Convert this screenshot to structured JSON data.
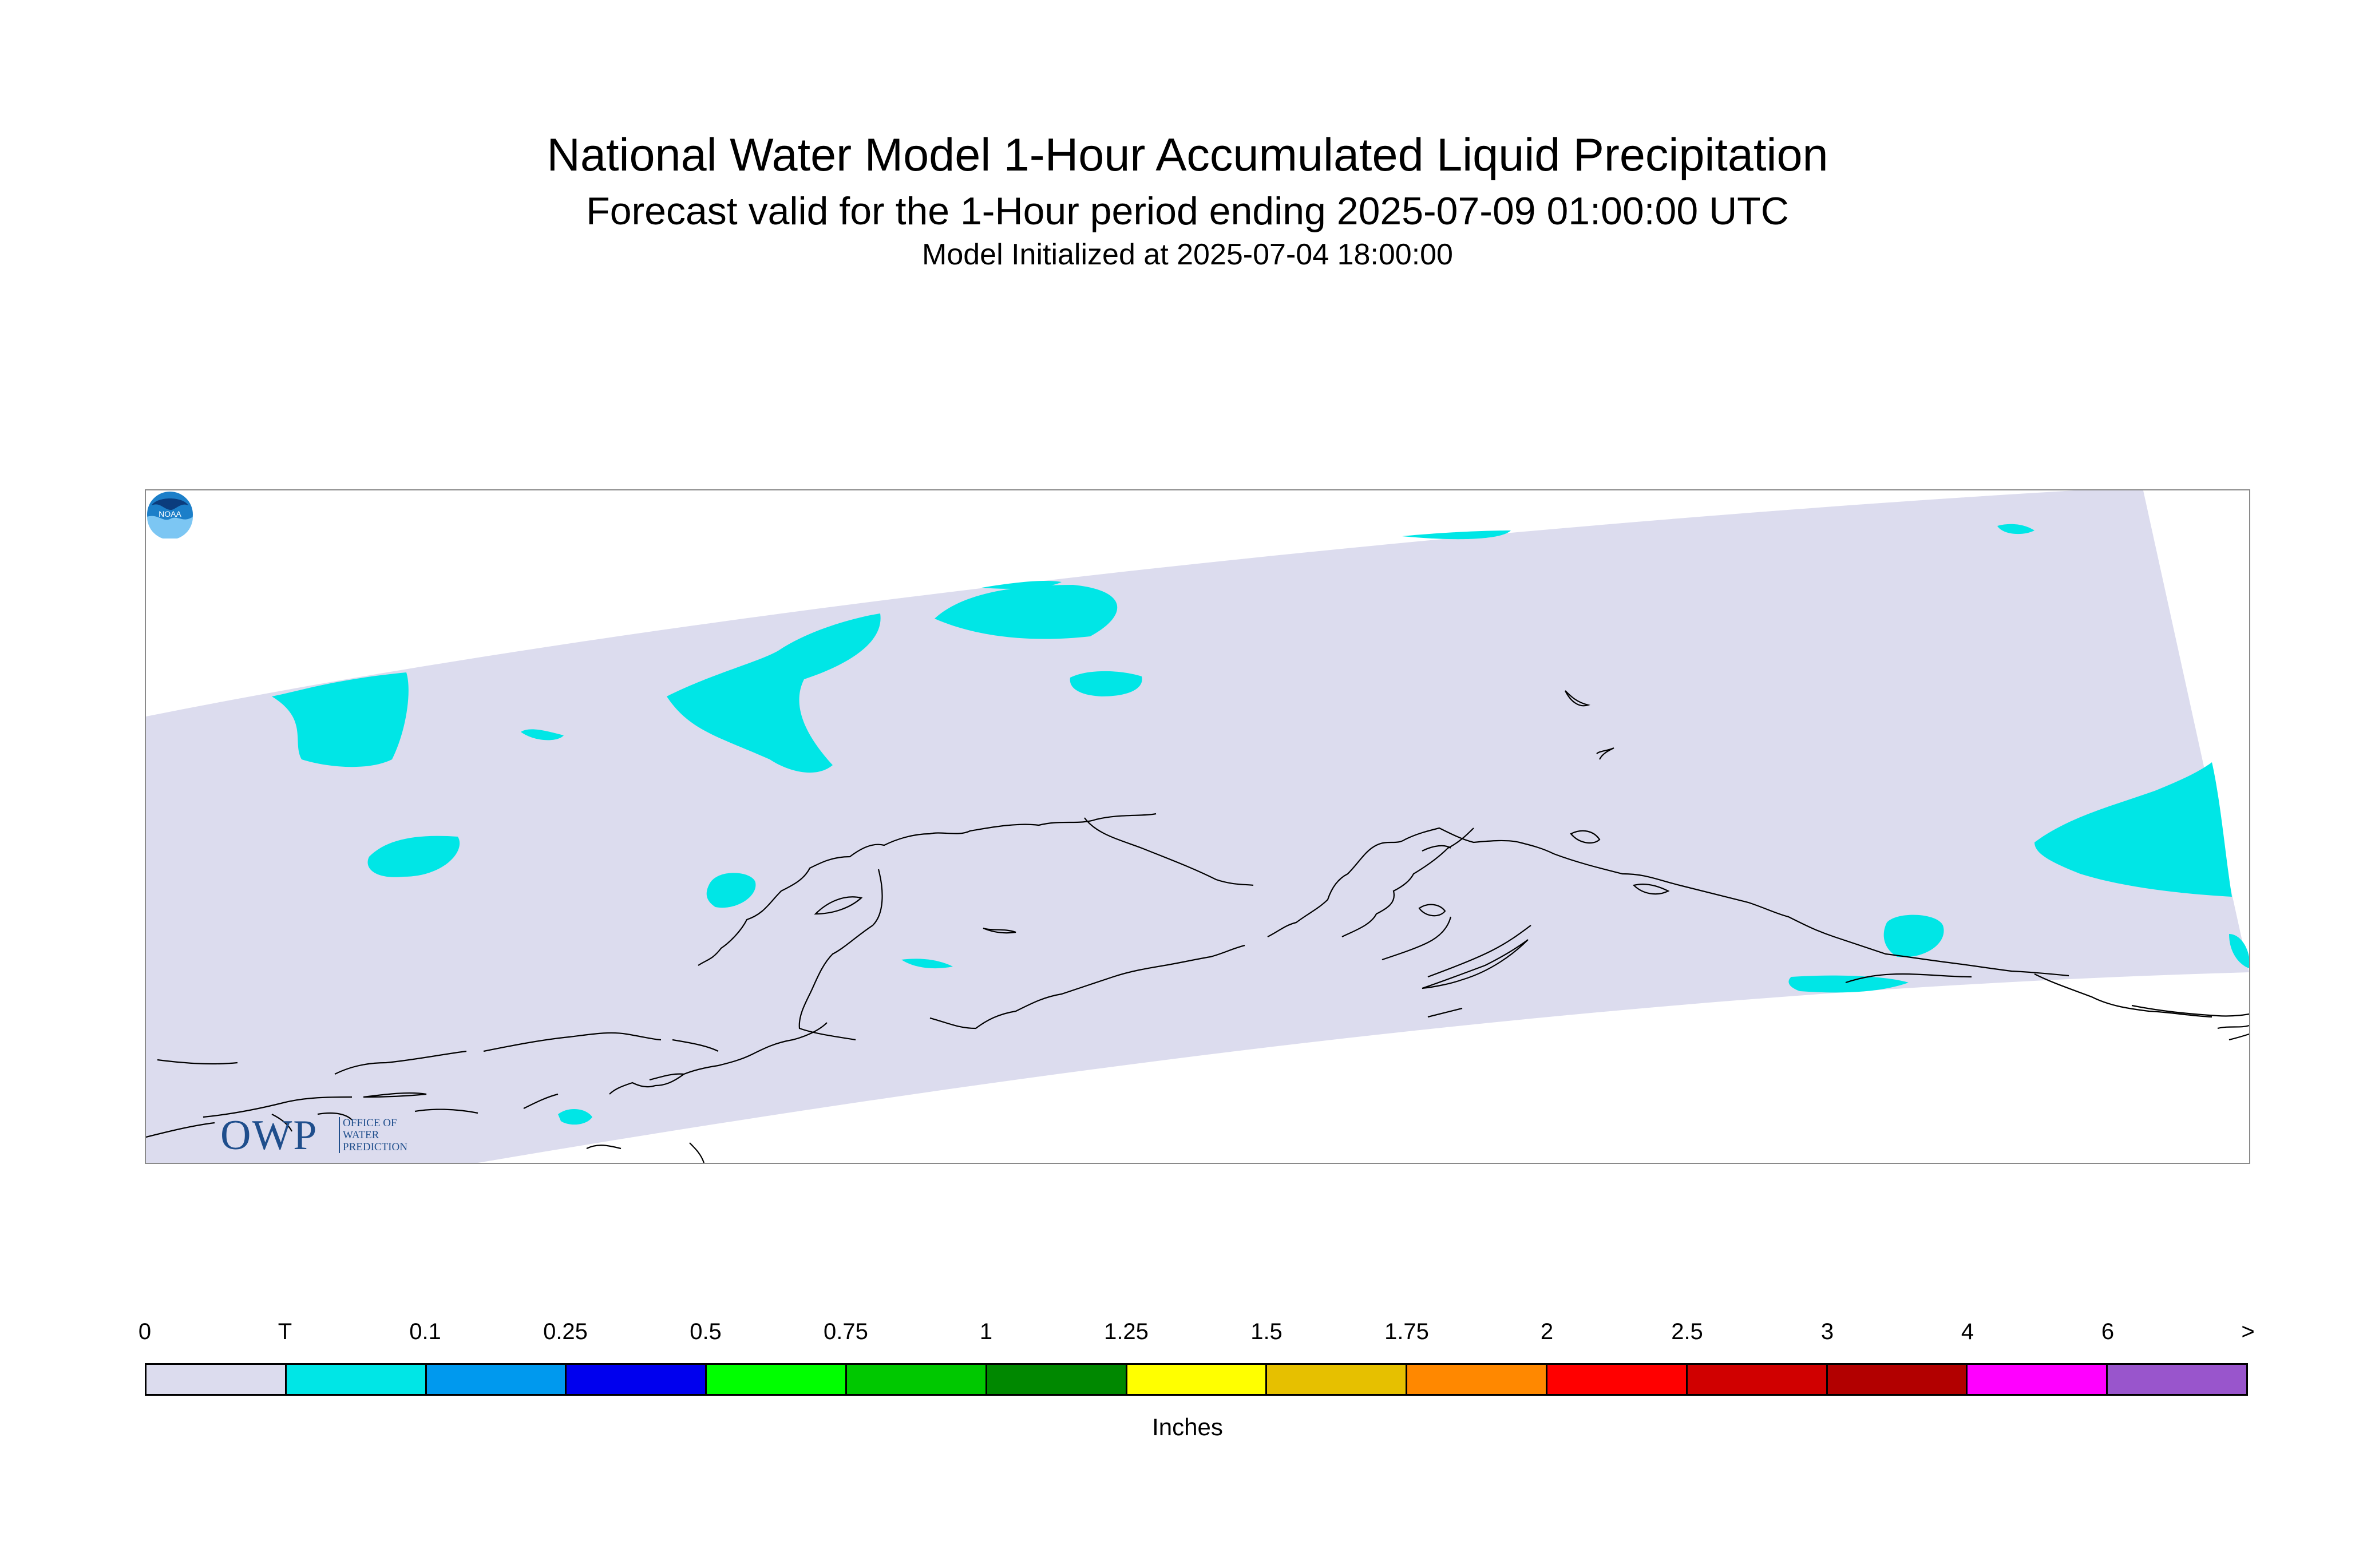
{
  "title": "National Water Model 1-Hour Accumulated Liquid Precipitation",
  "subtitle": "Forecast valid for the 1-Hour period ending 2025-07-09 01:00:00 UTC",
  "init_line": "Model Initialized at 2025-07-04 18:00:00",
  "logos": {
    "owp_text": "OWP",
    "owp_subtext": [
      "OFFICE OF",
      "WATER",
      "PREDICTION"
    ],
    "noaa_text": "NOAA"
  },
  "colors": {
    "domain_fill": "#dcdcee",
    "trace": "#00e6e6",
    "coastline": "#000000"
  },
  "legend": {
    "tick_labels": [
      "0",
      "T",
      "0.1",
      "0.25",
      "0.5",
      "0.75",
      "1",
      "1.25",
      "1.5",
      "1.75",
      "2",
      "2.5",
      "3",
      "4",
      "6",
      ">"
    ],
    "colors": [
      "#dcdcee",
      "#00e6e6",
      "#0099ee",
      "#0000ee",
      "#00ff00",
      "#00c800",
      "#008800",
      "#ffff00",
      "#e6c000",
      "#ff8800",
      "#ff0000",
      "#d00000",
      "#b20000",
      "#ff00ff",
      "#9955cc"
    ],
    "units": "Inches"
  }
}
